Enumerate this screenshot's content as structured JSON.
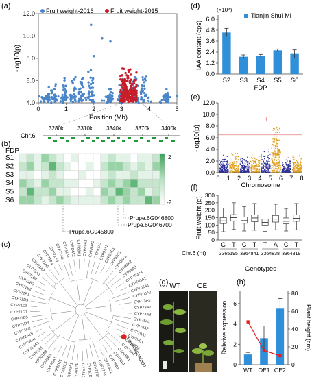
{
  "panels": {
    "a": {
      "label": "(a)"
    },
    "b": {
      "label": "(b)"
    },
    "c": {
      "label": "(c)"
    },
    "d": {
      "label": "(d)"
    },
    "e": {
      "label": "(e)"
    },
    "f": {
      "label": "(f)"
    },
    "g": {
      "label": "(g)"
    },
    "h": {
      "label": "(h)"
    }
  },
  "gwas_a": {
    "ylabel": "-log10(p)",
    "xlabel": "Position (Mb)",
    "legend": [
      "Fruit weight-2016",
      "Fruit weight-2015"
    ],
    "legend_colors": [
      "#4a86c8",
      "#c81e2a"
    ],
    "yticks": [
      "4.0",
      "6.0",
      "8.0",
      "10.0",
      "12.0"
    ],
    "xticks": [
      "0",
      "1",
      "2",
      "3",
      "4",
      "5"
    ],
    "ylim": [
      4,
      12
    ],
    "xlim": [
      0,
      5
    ],
    "threshold": 7.3
  },
  "genes_a": {
    "chromosome": "Chr.6",
    "ticks": [
      "3280k",
      "3310k",
      "3340k",
      "3370k",
      "3400k"
    ]
  },
  "heatmap_b": {
    "title": "FDP",
    "rows": [
      "S1",
      "S2",
      "S3",
      "S4",
      "S5",
      "S6"
    ],
    "scale_max": "2",
    "scale_min": "-2",
    "callouts": [
      "Prupe.6G045800",
      "Prupe.6G046700",
      "Prupe.6G046800"
    ]
  },
  "tree_c": {
    "leaves": [
      "CYP71D2",
      "CYP71D3",
      "CYP71D5",
      "CYP71D7",
      "CYP71D8",
      "CYP71D9",
      "CYP71B1",
      "CYP71B2",
      "CYP71B3",
      "CYP71B4",
      "CYP71A1",
      "CYP71A2",
      "CYP71A3",
      "CYP71A4",
      "CYP71A5",
      "CYP71A6",
      "CYP84A1",
      "CYP84A2",
      "CYP89A1",
      "CYP89A2",
      "CYP89A3",
      "CYP93A1",
      "CYP93A2",
      "CYP93B1",
      "CYP93C1",
      "CYP98A1",
      "CYP98A2",
      "CYP98A3",
      "CYP703A1",
      "CYP703A2",
      "CYP706A1",
      "CYP706A2",
      "CYP73A1",
      "CYP73A2",
      "CYP73A3",
      "CYP78A1",
      "CYP78A2",
      "CYP79A1",
      "CYP79B1",
      "CYP79B2",
      "CYP75A1",
      "CYP75B1",
      "CYP76A1",
      "CYP76B1",
      "CYP76C1",
      "CYP77A1",
      "CYP77B1",
      "CYP81D1",
      "CYP81D2",
      "CYP81F1",
      "CYP82A1",
      "CYP82C1",
      "CYP82G1",
      "CYP83A1",
      "CYP83B1",
      "CYP701A3",
      "CYP72A1",
      "CYP714A1",
      "CYP734A1",
      "CYP72A15"
    ],
    "highlight": "Prupe.6G046800"
  },
  "bar_d": {
    "ylabel": "IAA content (cps)",
    "multiplier": "(×10⁴)",
    "xlabel": "FDP",
    "legend": "Tianjin Shui Mi",
    "color": "#2f8fd8",
    "categories": [
      "S2",
      "S3",
      "S4",
      "S5",
      "S6"
    ],
    "values": [
      4.55,
      1.9,
      2.0,
      2.6,
      2.2
    ],
    "errors": [
      0.45,
      0.2,
      0.15,
      0.15,
      0.45
    ],
    "yticks": [
      "0.0",
      "1.2",
      "2.4",
      "3.6",
      "4.8",
      "6.0"
    ],
    "ylim": [
      0,
      6
    ]
  },
  "manhattan_e": {
    "ylabel": "-log10(p)",
    "xlabel": "Chromosome",
    "xticks": [
      "0",
      "1",
      "2",
      "3",
      "4",
      "5",
      "6",
      "7",
      "8"
    ],
    "yticks": [
      "0.0",
      "2.0",
      "4.0",
      "6.0",
      "8.0",
      "10.0",
      "12.0"
    ],
    "ylim": [
      0,
      12
    ],
    "threshold": 6.5,
    "colors": [
      "#2d2f9a",
      "#e0a020"
    ]
  },
  "box_f": {
    "ylabel": "Fruit weight (g)",
    "xlabel": "Genotypes",
    "yticks": [
      "0",
      "50",
      "100",
      "150",
      "200",
      "250",
      "300"
    ],
    "ylim": [
      0,
      300
    ],
    "genotypes": [
      "C",
      "T",
      "C",
      "T",
      "T",
      "A",
      "C",
      "T"
    ],
    "chr_label": "Chr.6 (nt)",
    "positions": [
      "3365195",
      "3364841",
      "3364838",
      "3364819"
    ],
    "boxes": [
      {
        "min": 55,
        "q1": 110,
        "median": 128,
        "q3": 150,
        "max": 215
      },
      {
        "min": 70,
        "q1": 128,
        "median": 150,
        "q3": 170,
        "max": 250
      },
      {
        "min": 60,
        "q1": 112,
        "median": 130,
        "q3": 155,
        "max": 225
      },
      {
        "min": 65,
        "q1": 122,
        "median": 148,
        "q3": 168,
        "max": 245
      },
      {
        "min": 58,
        "q1": 100,
        "median": 118,
        "q3": 140,
        "max": 200
      },
      {
        "min": 68,
        "q1": 120,
        "median": 140,
        "q3": 165,
        "max": 240
      },
      {
        "min": 60,
        "q1": 108,
        "median": 125,
        "q3": 148,
        "max": 212
      },
      {
        "min": 68,
        "q1": 125,
        "median": 145,
        "q3": 168,
        "max": 245
      }
    ]
  },
  "photo_g": {
    "labels": [
      "WT",
      "OE"
    ]
  },
  "combo_h": {
    "ylabel_left": "Relative expression",
    "ylabel_right": "Plant height (cm)",
    "categories": [
      "WT",
      "OE1",
      "OE2"
    ],
    "bars": [
      1.0,
      2.6,
      5.5
    ],
    "bar_errors": [
      0.2,
      1.2,
      1.0
    ],
    "line": [
      48,
      16,
      10
    ],
    "bar_color": "#2f8fd8",
    "line_color": "#e02020",
    "yticks_left": [
      "0",
      "2",
      "4",
      "6"
    ],
    "yticks_right": [
      "0",
      "20",
      "40",
      "60",
      "80"
    ],
    "ylim_left": [
      0,
      7
    ],
    "ylim_right": [
      0,
      80
    ]
  }
}
